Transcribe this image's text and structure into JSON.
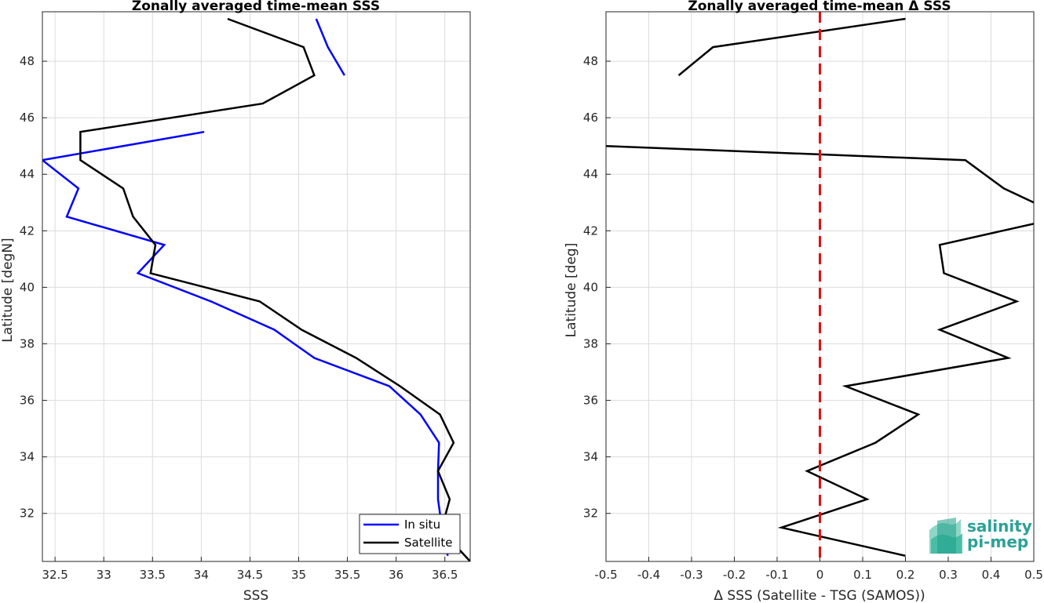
{
  "chart_data": [
    {
      "type": "line",
      "title": "Zonally averaged time-mean SSS",
      "xlabel": "SSS",
      "ylabel": "Latitude [degN]",
      "xlim": [
        32.37,
        36.76
      ],
      "ylim": [
        30.3,
        49.75
      ],
      "xticks": [
        "32.5",
        "33",
        "33.5",
        "34",
        "34.5",
        "35",
        "35.5",
        "36",
        "36.5"
      ],
      "xtick_values": [
        32.5,
        33,
        33.5,
        34,
        34.5,
        35,
        35.5,
        36,
        36.5
      ],
      "yticks": [
        "32",
        "34",
        "36",
        "38",
        "40",
        "42",
        "44",
        "46",
        "48"
      ],
      "ytick_values": [
        32,
        34,
        36,
        38,
        40,
        42,
        44,
        46,
        48
      ],
      "grid": true,
      "legend": {
        "placement": "bottom-right",
        "entries": [
          "In situ",
          "Satellite"
        ]
      },
      "series": [
        {
          "name": "In situ",
          "color": "#0000ff",
          "segments": [
            [
              [
                35.18,
                49.5
              ],
              [
                35.3,
                48.5
              ],
              [
                35.47,
                47.5
              ]
            ],
            [
              [
                34.03,
                45.5
              ],
              [
                32.37,
                44.5
              ],
              [
                32.74,
                43.5
              ],
              [
                32.62,
                42.5
              ],
              [
                33.62,
                41.5
              ],
              [
                33.35,
                40.5
              ],
              [
                34.1,
                39.5
              ],
              [
                34.75,
                38.5
              ],
              [
                35.16,
                37.5
              ],
              [
                35.93,
                36.5
              ],
              [
                36.25,
                35.5
              ],
              [
                36.44,
                34.5
              ],
              [
                36.43,
                33.5
              ],
              [
                36.43,
                32.5
              ],
              [
                36.47,
                31.5
              ],
              [
                36.53,
                30.5
              ]
            ]
          ]
        },
        {
          "name": "Satellite",
          "color": "#000000",
          "segments": [
            [
              [
                34.27,
                49.5
              ],
              [
                35.05,
                48.5
              ],
              [
                35.16,
                47.5
              ],
              [
                34.63,
                46.5
              ],
              [
                32.76,
                45.5
              ],
              [
                32.76,
                44.5
              ],
              [
                33.2,
                43.5
              ],
              [
                33.3,
                42.5
              ],
              [
                33.53,
                41.5
              ],
              [
                33.48,
                40.5
              ],
              [
                34.6,
                39.5
              ],
              [
                35.03,
                38.5
              ],
              [
                35.59,
                37.5
              ],
              [
                36.04,
                36.5
              ],
              [
                36.45,
                35.5
              ],
              [
                36.59,
                34.5
              ],
              [
                36.43,
                33.5
              ],
              [
                36.55,
                32.5
              ],
              [
                36.47,
                31.5
              ],
              [
                36.6,
                30.9
              ],
              [
                36.76,
                30.3
              ]
            ]
          ]
        }
      ]
    },
    {
      "type": "line",
      "title": "Zonally averaged time-mean Δ SSS",
      "xlabel": "Δ SSS (Satellite - TSG (SAMOS))",
      "ylabel": "Latitude [deg]",
      "xlim": [
        -0.5,
        0.5
      ],
      "ylim": [
        30.3,
        49.75
      ],
      "xticks": [
        "-0.5",
        "-0.4",
        "-0.3",
        "-0.2",
        "-0.1",
        "0",
        "0.1",
        "0.2",
        "0.3",
        "0.4",
        "0.5"
      ],
      "xtick_values": [
        -0.5,
        -0.4,
        -0.3,
        -0.2,
        -0.1,
        0,
        0.1,
        0.2,
        0.3,
        0.4,
        0.5
      ],
      "yticks": [
        "32",
        "34",
        "36",
        "38",
        "40",
        "42",
        "44",
        "46",
        "48"
      ],
      "ytick_values": [
        32,
        34,
        36,
        38,
        40,
        42,
        44,
        46,
        48
      ],
      "grid": true,
      "reference_line": {
        "x": 0,
        "color": "#e01010",
        "style": "dashed"
      },
      "series": [
        {
          "color": "#000000",
          "segments": [
            [
              [
                0.2,
                49.5
              ],
              [
                -0.25,
                48.5
              ],
              [
                -0.33,
                47.5
              ]
            ],
            [
              [
                -0.5,
                45.0
              ],
              [
                0.34,
                44.5
              ],
              [
                0.43,
                43.5
              ],
              [
                0.5,
                43.0
              ]
            ],
            [
              [
                0.5,
                42.25
              ],
              [
                0.28,
                41.5
              ],
              [
                0.29,
                40.5
              ],
              [
                0.46,
                39.5
              ],
              [
                0.28,
                38.5
              ],
              [
                0.44,
                37.5
              ],
              [
                0.06,
                36.5
              ],
              [
                0.23,
                35.5
              ],
              [
                0.13,
                34.5
              ],
              [
                -0.03,
                33.5
              ],
              [
                0.11,
                32.5
              ],
              [
                -0.09,
                31.5
              ],
              [
                0.2,
                30.5
              ]
            ]
          ]
        }
      ]
    }
  ],
  "logo": {
    "line1": "salinity",
    "line2": "pi-mep",
    "color": "#2aa198"
  }
}
